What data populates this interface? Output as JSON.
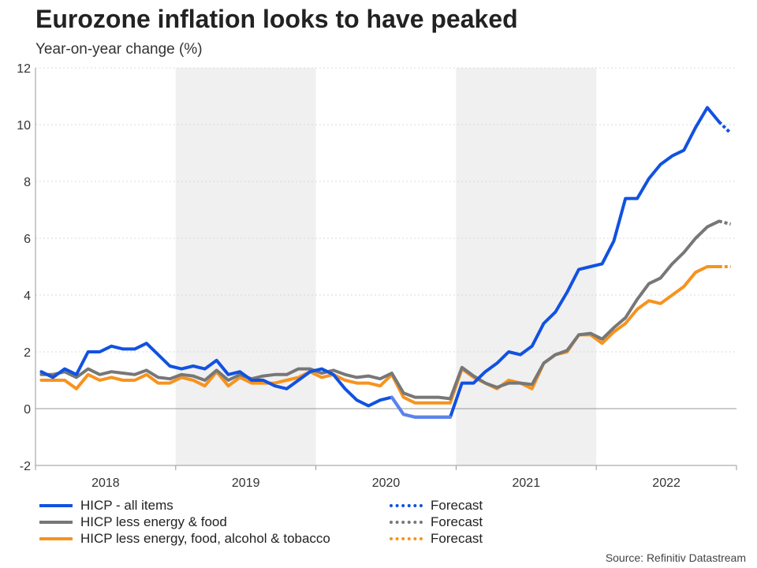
{
  "title": "Eurozone inflation looks to have peaked",
  "subtitle": "Year-on-year change (%)",
  "source": "Source: Refinitiv Datastream",
  "chart_data": {
    "type": "line",
    "ylim": [
      -2,
      12
    ],
    "yticks": [
      -2,
      0,
      2,
      4,
      6,
      8,
      10,
      12
    ],
    "x_start": "2018-01",
    "x_end": "2022-12",
    "years": [
      "2018",
      "2019",
      "2020",
      "2021",
      "2022"
    ],
    "shaded_years": [
      "2019",
      "2021"
    ],
    "grid": "horizontal dotted",
    "series": [
      {
        "name": "HICP - all items",
        "color": "#1152e0",
        "x": [
          "2018-01",
          "2018-02",
          "2018-03",
          "2018-04",
          "2018-05",
          "2018-06",
          "2018-07",
          "2018-08",
          "2018-09",
          "2018-10",
          "2018-11",
          "2018-12",
          "2019-01",
          "2019-02",
          "2019-03",
          "2019-04",
          "2019-05",
          "2019-06",
          "2019-07",
          "2019-08",
          "2019-09",
          "2019-10",
          "2019-11",
          "2019-12",
          "2020-01",
          "2020-02",
          "2020-03",
          "2020-04",
          "2020-05",
          "2020-06",
          "2020-07",
          "2020-08",
          "2020-09",
          "2020-10",
          "2020-11",
          "2020-12",
          "2021-01",
          "2021-02",
          "2021-03",
          "2021-04",
          "2021-05",
          "2021-06",
          "2021-07",
          "2021-08",
          "2021-09",
          "2021-10",
          "2021-11",
          "2021-12",
          "2022-01",
          "2022-02",
          "2022-03",
          "2022-04",
          "2022-05",
          "2022-06",
          "2022-07",
          "2022-08",
          "2022-09",
          "2022-10",
          "2022-11"
        ],
        "values": [
          1.3,
          1.1,
          1.4,
          1.2,
          2.0,
          2.0,
          2.2,
          2.1,
          2.1,
          2.3,
          1.9,
          1.5,
          1.4,
          1.5,
          1.4,
          1.7,
          1.2,
          1.3,
          1.0,
          1.0,
          0.8,
          0.7,
          1.0,
          1.3,
          1.4,
          1.2,
          0.7,
          0.3,
          0.1,
          0.3,
          0.4,
          -0.2,
          -0.3,
          -0.3,
          -0.3,
          -0.3,
          0.9,
          0.9,
          1.3,
          1.6,
          2.0,
          1.9,
          2.2,
          3.0,
          3.4,
          4.1,
          4.9,
          5.0,
          5.1,
          5.9,
          7.4,
          7.4,
          8.1,
          8.6,
          8.9,
          9.1,
          9.9,
          10.6,
          10.1
        ]
      },
      {
        "name": "Forecast",
        "color": "#1152e0",
        "dashed": true,
        "x": [
          "2022-11",
          "2022-12"
        ],
        "values": [
          10.1,
          9.7
        ]
      },
      {
        "name": "HICP less energy & food",
        "color": "#777777",
        "x": [
          "2018-01",
          "2018-02",
          "2018-03",
          "2018-04",
          "2018-05",
          "2018-06",
          "2018-07",
          "2018-08",
          "2018-09",
          "2018-10",
          "2018-11",
          "2018-12",
          "2019-01",
          "2019-02",
          "2019-03",
          "2019-04",
          "2019-05",
          "2019-06",
          "2019-07",
          "2019-08",
          "2019-09",
          "2019-10",
          "2019-11",
          "2019-12",
          "2020-01",
          "2020-02",
          "2020-03",
          "2020-04",
          "2020-05",
          "2020-06",
          "2020-07",
          "2020-08",
          "2020-09",
          "2020-10",
          "2020-11",
          "2020-12",
          "2021-01",
          "2021-02",
          "2021-03",
          "2021-04",
          "2021-05",
          "2021-06",
          "2021-07",
          "2021-08",
          "2021-09",
          "2021-10",
          "2021-11",
          "2021-12",
          "2022-01",
          "2022-02",
          "2022-03",
          "2022-04",
          "2022-05",
          "2022-06",
          "2022-07",
          "2022-08",
          "2022-09",
          "2022-10",
          "2022-11"
        ],
        "values": [
          1.2,
          1.2,
          1.3,
          1.1,
          1.4,
          1.2,
          1.3,
          1.25,
          1.2,
          1.35,
          1.1,
          1.05,
          1.2,
          1.15,
          1.0,
          1.35,
          1.0,
          1.2,
          1.05,
          1.15,
          1.2,
          1.2,
          1.4,
          1.4,
          1.25,
          1.35,
          1.2,
          1.1,
          1.15,
          1.05,
          1.25,
          0.55,
          0.4,
          0.4,
          0.4,
          0.35,
          1.45,
          1.15,
          0.9,
          0.75,
          0.9,
          0.9,
          0.85,
          1.6,
          1.9,
          2.05,
          2.6,
          2.65,
          2.45,
          2.85,
          3.2,
          3.85,
          4.4,
          4.6,
          5.1,
          5.5,
          6.0,
          6.4,
          6.6
        ]
      },
      {
        "name": "Forecast",
        "color": "#777777",
        "dashed": true,
        "x": [
          "2022-11",
          "2022-12"
        ],
        "values": [
          6.6,
          6.5
        ]
      },
      {
        "name": "HICP less energy, food, alcohol & tobacco",
        "color": "#f7931e",
        "x": [
          "2018-01",
          "2018-02",
          "2018-03",
          "2018-04",
          "2018-05",
          "2018-06",
          "2018-07",
          "2018-08",
          "2018-09",
          "2018-10",
          "2018-11",
          "2018-12",
          "2019-01",
          "2019-02",
          "2019-03",
          "2019-04",
          "2019-05",
          "2019-06",
          "2019-07",
          "2019-08",
          "2019-09",
          "2019-10",
          "2019-11",
          "2019-12",
          "2020-01",
          "2020-02",
          "2020-03",
          "2020-04",
          "2020-05",
          "2020-06",
          "2020-07",
          "2020-08",
          "2020-09",
          "2020-10",
          "2020-11",
          "2020-12",
          "2021-01",
          "2021-02",
          "2021-03",
          "2021-04",
          "2021-05",
          "2021-06",
          "2021-07",
          "2021-08",
          "2021-09",
          "2021-10",
          "2021-11",
          "2021-12",
          "2022-01",
          "2022-02",
          "2022-03",
          "2022-04",
          "2022-05",
          "2022-06",
          "2022-07",
          "2022-08",
          "2022-09",
          "2022-10",
          "2022-11"
        ],
        "values": [
          1.0,
          1.0,
          1.0,
          0.7,
          1.2,
          1.0,
          1.1,
          1.0,
          1.0,
          1.2,
          0.9,
          0.9,
          1.1,
          1.0,
          0.8,
          1.3,
          0.8,
          1.1,
          0.9,
          0.9,
          0.9,
          1.0,
          1.1,
          1.3,
          1.1,
          1.2,
          1.0,
          0.9,
          0.9,
          0.8,
          1.2,
          0.4,
          0.2,
          0.2,
          0.2,
          0.2,
          1.4,
          1.1,
          0.9,
          0.7,
          1.0,
          0.9,
          0.7,
          1.6,
          1.9,
          2.0,
          2.6,
          2.6,
          2.3,
          2.7,
          3.0,
          3.5,
          3.8,
          3.7,
          4.0,
          4.3,
          4.8,
          5.0,
          5.0
        ]
      },
      {
        "name": "Forecast",
        "color": "#f7931e",
        "dashed": true,
        "x": [
          "2022-11",
          "2022-12"
        ],
        "values": [
          5.0,
          5.0
        ]
      }
    ],
    "highlight_segment": {
      "series": "HICP - all items",
      "color": "#5b83ea",
      "x_from": "2020-07",
      "x_to": "2020-12"
    }
  },
  "legend": [
    {
      "label": "HICP - all items",
      "color": "#1152e0",
      "style": "solid"
    },
    {
      "label": "Forecast",
      "color": "#1152e0",
      "style": "dotted"
    },
    {
      "label": "HICP less energy & food",
      "color": "#777777",
      "style": "solid"
    },
    {
      "label": "Forecast",
      "color": "#777777",
      "style": "dotted"
    },
    {
      "label": "HICP less energy, food, alcohol & tobacco",
      "color": "#f7931e",
      "style": "solid"
    },
    {
      "label": "Forecast",
      "color": "#f7931e",
      "style": "dotted"
    }
  ]
}
